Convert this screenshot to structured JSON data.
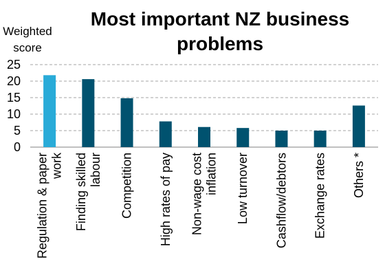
{
  "chart_data": {
    "type": "bar",
    "title": [
      "Most important NZ business",
      "problems"
    ],
    "ylabel": [
      "Weighted",
      "score"
    ],
    "xlabel": "",
    "categories": [
      [
        "Regulation & paper",
        "work"
      ],
      [
        "Finding skilled",
        "labour"
      ],
      [
        "Competition"
      ],
      [
        "High rates of pay"
      ],
      [
        "Non-wage cost",
        "inflation"
      ],
      [
        "Low turnover"
      ],
      [
        "Cashflow/debtors"
      ],
      [
        "Exchange rates"
      ],
      [
        "Others *"
      ]
    ],
    "values": [
      21.8,
      20.6,
      14.8,
      7.8,
      6.1,
      5.8,
      5.0,
      5.0,
      12.6
    ],
    "ylim": [
      0,
      25
    ],
    "yticks": [
      0,
      5,
      10,
      15,
      20,
      25
    ],
    "grid": true,
    "colors": {
      "highlight": "#29ABD8",
      "bar": "#00526F",
      "grid": "#A6A6A6",
      "axis": "#808080"
    },
    "highlight_index": 0
  }
}
